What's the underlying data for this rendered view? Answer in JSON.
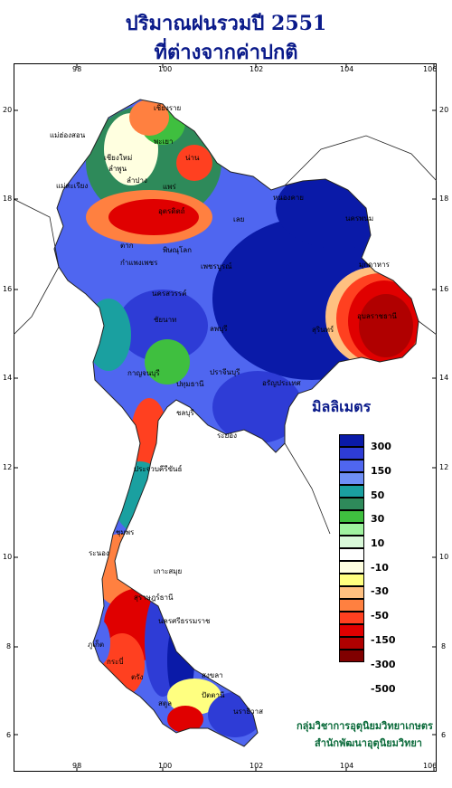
{
  "title": {
    "line1": "ปริมาณฝนรวมปี  2551",
    "line2": "ที่ต่างจากค่าปกติ"
  },
  "axes": {
    "x_ticks": [
      "98",
      "100",
      "102",
      "104",
      "106"
    ],
    "y_ticks": [
      "20",
      "18",
      "16",
      "14",
      "12",
      "10",
      "8",
      "6"
    ]
  },
  "legend": {
    "title": "มิลลิเมตร",
    "labels": [
      "300",
      "150",
      "50",
      "30",
      "10",
      "-10",
      "-30",
      "-50",
      "-150",
      "-300",
      "-500"
    ],
    "colors": [
      "#0a1aa8",
      "#2e3cd6",
      "#4f66f0",
      "#6f8ff6",
      "#1aa0a0",
      "#2e8a5a",
      "#3fbf3f",
      "#9ff29f",
      "#d8f8d8",
      "#ffffff",
      "#ffffe0",
      "#ffff80",
      "#ffc080",
      "#ff8040",
      "#ff4020",
      "#e00000",
      "#b00000",
      "#800000"
    ]
  },
  "places": [
    {
      "name": "เชียงราย"
    },
    {
      "name": "แม่ฮ่องสอน"
    },
    {
      "name": "พะเยา"
    },
    {
      "name": "เชียงใหม่"
    },
    {
      "name": "ลำพูน"
    },
    {
      "name": "น่าน"
    },
    {
      "name": "ลำปาง"
    },
    {
      "name": "แพร่"
    },
    {
      "name": "แม่สะเรียง"
    },
    {
      "name": "อุตรดิตถ์"
    },
    {
      "name": "หนองคาย"
    },
    {
      "name": "นครพนม"
    },
    {
      "name": "เลย"
    },
    {
      "name": "ตาก"
    },
    {
      "name": "พิษณุโลก"
    },
    {
      "name": "มุกดาหาร"
    },
    {
      "name": "กำแพงเพชร"
    },
    {
      "name": "เพชรบูรณ์"
    },
    {
      "name": "นครสวรรค์"
    },
    {
      "name": "อุบลราชธานี"
    },
    {
      "name": "ชัยนาท"
    },
    {
      "name": "ลพบุรี"
    },
    {
      "name": "สุรินทร์"
    },
    {
      "name": "กาญจนบุรี"
    },
    {
      "name": "ปทุมธานี"
    },
    {
      "name": "ปราจีนบุรี"
    },
    {
      "name": "อรัญประเทศ"
    },
    {
      "name": "ชลบุรี"
    },
    {
      "name": "ระยอง"
    },
    {
      "name": "ประจวบคีรีขันธ์"
    },
    {
      "name": "ชุมพร"
    },
    {
      "name": "ระนอง"
    },
    {
      "name": "เกาะสมุย"
    },
    {
      "name": "สุราษฎร์ธานี"
    },
    {
      "name": "นครศรีธรรมราช"
    },
    {
      "name": "ภูเก็ต"
    },
    {
      "name": "กระบี่"
    },
    {
      "name": "ตรัง"
    },
    {
      "name": "สงขลา"
    },
    {
      "name": "ปัตตานี"
    },
    {
      "name": "สตูล"
    },
    {
      "name": "นราธิวาส"
    }
  ],
  "credit": {
    "line1": "กลุ่มวิชาการอุตุนิยมวิทยาเกษตร",
    "line2": "สำนักพัฒนาอุตุนิยมวิทยา"
  }
}
